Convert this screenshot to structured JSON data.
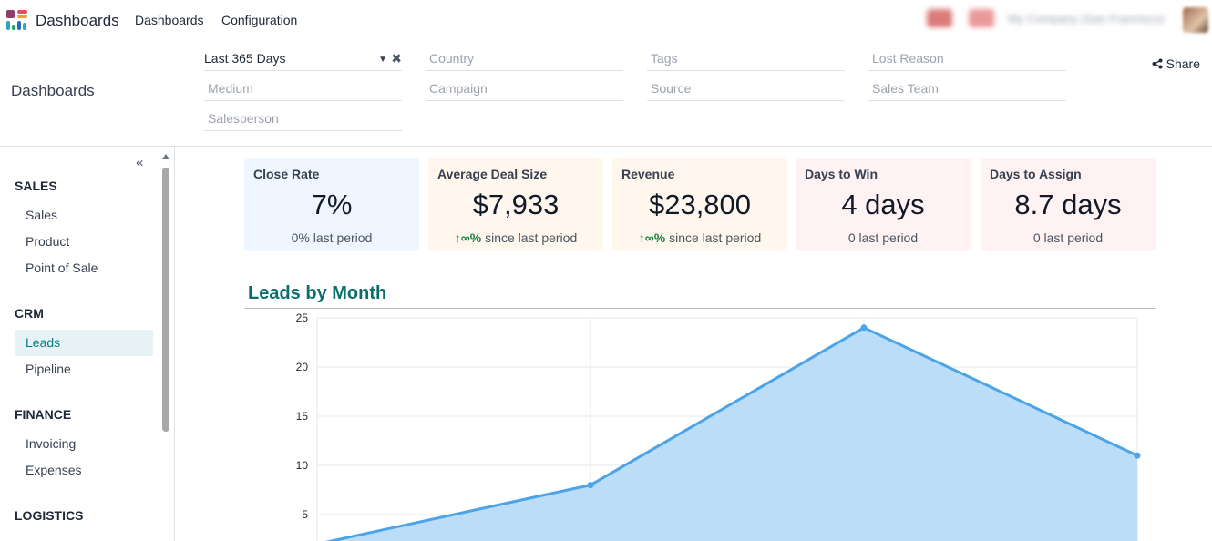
{
  "nav": {
    "app_title": "Dashboards",
    "menu": [
      "Dashboards",
      "Configuration"
    ]
  },
  "control": {
    "breadcrumb": "Dashboards",
    "filters": {
      "period": "Last 365 Days",
      "country": "Country",
      "tags": "Tags",
      "lost_reason": "Lost Reason",
      "medium": "Medium",
      "campaign": "Campaign",
      "source": "Source",
      "sales_team": "Sales Team",
      "salesperson": "Salesperson"
    },
    "share_label": "Share"
  },
  "sidebar": {
    "sections": [
      {
        "title": "SALES",
        "items": [
          "Sales",
          "Product",
          "Point of Sale"
        ]
      },
      {
        "title": "CRM",
        "items": [
          "Leads",
          "Pipeline"
        ]
      },
      {
        "title": "FINANCE",
        "items": [
          "Invoicing",
          "Expenses"
        ]
      },
      {
        "title": "LOGISTICS",
        "items": []
      }
    ],
    "active_item": "Leads"
  },
  "kpis": [
    {
      "label": "Close Rate",
      "value": "7%",
      "trend": "",
      "sub": "0% last period",
      "bg": "#eff6ff"
    },
    {
      "label": "Average Deal Size",
      "value": "$7,933",
      "trend": "∞%",
      "sub": "since last period",
      "bg": "#fff7ed"
    },
    {
      "label": "Revenue",
      "value": "$23,800",
      "trend": "∞%",
      "sub": "since last period",
      "bg": "#fff7ed"
    },
    {
      "label": "Days to Win",
      "value": "4 days",
      "trend": "",
      "sub": "0 last period",
      "bg": "#fef2f2"
    },
    {
      "label": "Days to Assign",
      "value": "8.7 days",
      "trend": "",
      "sub": "0 last period",
      "bg": "#fef2f2"
    }
  ],
  "colors": {
    "accent": "#017e84",
    "chart_line": "#4ca3e8",
    "chart_fill": "#b8dbf8",
    "trend_up": "#15803d"
  },
  "chart_data": {
    "type": "area",
    "title": "Leads by Month",
    "x": [
      0,
      1,
      2,
      3
    ],
    "series": [
      {
        "values": [
          2,
          8,
          24,
          11
        ]
      }
    ],
    "yticks": [
      5,
      10,
      15,
      20,
      25
    ],
    "ylim": [
      0,
      25
    ],
    "grid": true
  }
}
